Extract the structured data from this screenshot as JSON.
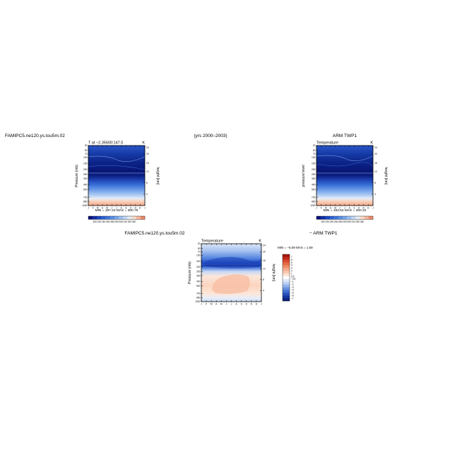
{
  "page": {
    "left_heading": "FAMIPC5.ne120.ys.tou5m.02",
    "center_heading": "(yrs 2000–2003)",
    "right_heading": "ARM TWP1",
    "diff_left_heading": "FAMIPC5.ne120.ys.tou5m.02",
    "diff_right_heading": "− ARM TWP1"
  },
  "chart_data": [
    {
      "type": "heatmap",
      "title": "T at  −2.35600:147.5",
      "units": "K",
      "ylabel": "Pressure (mb)",
      "ylabel_right": "height (km)",
      "x": [
        "J",
        "F",
        "M",
        "A",
        "M",
        "J",
        "J",
        "A",
        "S",
        "O",
        "N",
        "D",
        "J"
      ],
      "pressure_ticks": [
        "20",
        "50",
        "70",
        "100",
        "150",
        "200",
        "250",
        "300",
        "400",
        "500",
        "700",
        "850",
        "1000"
      ],
      "height_ticks": [
        "24",
        "20",
        "16",
        "12",
        "8",
        "4"
      ],
      "stats": "MIN =  197.23  MAX =  300.76",
      "levels": [
        "200",
        "220",
        "240",
        "260",
        "280",
        "290",
        "300",
        "310",
        "320",
        "340"
      ],
      "colorbar_orientation": "horizontal",
      "colors": [
        "#08127a",
        "#0f2ca8",
        "#1c49c4",
        "#2d62d4",
        "#3f77e0",
        "#5a8ee6",
        "#79a7ee",
        "#9dc0f3",
        "#c3d8f7",
        "#e6eef9",
        "#fbdccb",
        "#f7b8a0",
        "#ee8b6a"
      ]
    },
    {
      "type": "heatmap",
      "title": "Temperature",
      "units": "K",
      "ylabel": "pressure level",
      "ylabel_right": "height (km)",
      "x": [
        "J",
        "F",
        "M",
        "A",
        "M",
        "J",
        "J",
        "A",
        "S",
        "O",
        "N",
        "D",
        "J"
      ],
      "pressure_ticks": [
        "20",
        "50",
        "70",
        "100",
        "150",
        "200",
        "250",
        "300",
        "400",
        "500",
        "700",
        "850",
        "1000"
      ],
      "height_ticks": [
        "24",
        "20",
        "16",
        "12",
        "8",
        "4"
      ],
      "stats": "MIN =  193.54  MAX =  300.32",
      "levels": [
        "200",
        "220",
        "240",
        "260",
        "280",
        "290",
        "300",
        "310",
        "320",
        "340"
      ],
      "colorbar_orientation": "horizontal",
      "colors": [
        "#08127a",
        "#0f2ca8",
        "#1c49c4",
        "#2d62d4",
        "#3f77e0",
        "#5a8ee6",
        "#79a7ee",
        "#9dc0f3",
        "#c3d8f7",
        "#e6eef9",
        "#fbdccb",
        "#f7b8a0",
        "#ee8b6a"
      ]
    },
    {
      "type": "heatmap",
      "title": "Temperature",
      "units": "K",
      "ylabel": "Pressure (mb)",
      "ylabel_right": "height (km)",
      "x": [
        "J",
        "F",
        "M",
        "A",
        "M",
        "J",
        "J",
        "A",
        "S",
        "O",
        "N",
        "D",
        "J"
      ],
      "pressure_ticks": [
        "20",
        "50",
        "70",
        "100",
        "150",
        "200",
        "250",
        "300",
        "400",
        "500",
        "700",
        "850",
        "1000"
      ],
      "height_ticks": [
        "24",
        "20",
        "16",
        "12",
        "8",
        "4"
      ],
      "stats": "MIN =  −6.09  MAX =   1.69",
      "levels": [
        "7",
        "6",
        "5",
        "4",
        "3",
        "2",
        "1",
        "0.5",
        "−0.5",
        "−1",
        "−2",
        "−3",
        "−4",
        "−5",
        "−6",
        "−7"
      ],
      "colorbar_orientation": "vertical",
      "colors": [
        "#a8180f",
        "#c42a1a",
        "#d94a2f",
        "#e66a48",
        "#ef8c68",
        "#f5ab8c",
        "#f9c8b0",
        "#fce3d4",
        "#ffffff",
        "#dfe8f8",
        "#bcd2f4",
        "#93b4ec",
        "#6892e0",
        "#4571d2",
        "#2a52bd",
        "#1636a0",
        "#0a1f7c"
      ]
    }
  ]
}
